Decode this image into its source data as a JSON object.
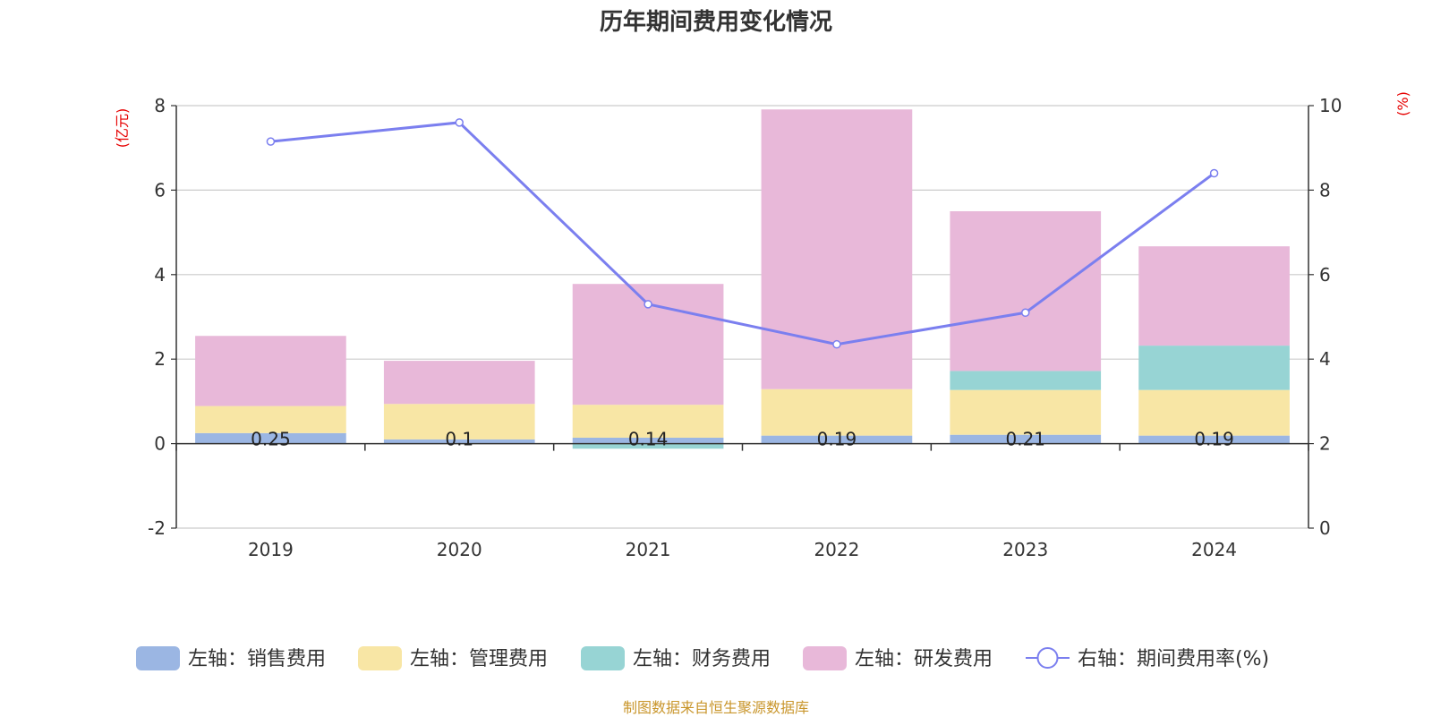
{
  "chart_data": {
    "type": "bar",
    "stacked": true,
    "title": "历年期间费用变化情况",
    "categories": [
      "2019",
      "2020",
      "2021",
      "2022",
      "2023",
      "2024"
    ],
    "left_axis": {
      "unit": "(亿元)",
      "ylim": [
        -2,
        8
      ],
      "ticks": [
        -2,
        0,
        2,
        4,
        6,
        8
      ]
    },
    "right_axis": {
      "unit": "(%)",
      "ylim": [
        0,
        10
      ],
      "ticks": [
        0,
        2,
        4,
        6,
        8,
        10
      ]
    },
    "series": [
      {
        "name": "左轴：销售费用",
        "axis": "left",
        "color": "#9bb6e3",
        "values": [
          0.25,
          0.1,
          0.14,
          0.19,
          0.21,
          0.19
        ],
        "data_labels": [
          "0.25",
          "0.1",
          "0.14",
          "0.19",
          "0.21",
          "0.19"
        ]
      },
      {
        "name": "左轴：管理费用",
        "axis": "left",
        "color": "#f8e6a5",
        "values": [
          0.64,
          0.84,
          0.78,
          1.1,
          1.06,
          1.08
        ]
      },
      {
        "name": "左轴：财务费用",
        "axis": "left",
        "color": "#97d4d4",
        "values": [
          0.0,
          0.0,
          -0.12,
          0.0,
          0.45,
          1.05
        ]
      },
      {
        "name": "左轴：研发费用",
        "axis": "left",
        "color": "#e8b8d9",
        "values": [
          1.66,
          1.02,
          2.86,
          6.62,
          3.78,
          2.35
        ]
      },
      {
        "name": "右轴：期间费用率(%)",
        "axis": "right",
        "type": "line",
        "color": "#7b7fef",
        "values": [
          9.15,
          9.6,
          5.3,
          4.35,
          5.1,
          8.4
        ]
      }
    ],
    "grid": true,
    "legend_position": "bottom"
  },
  "source_note": "制图数据来自恒生聚源数据库"
}
